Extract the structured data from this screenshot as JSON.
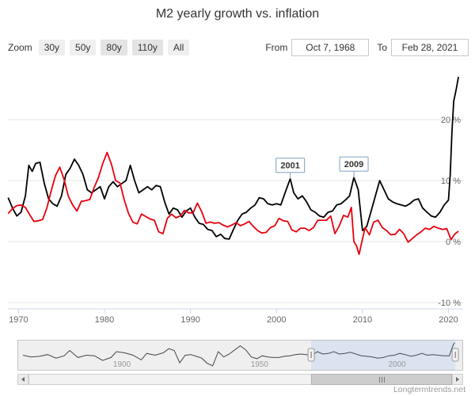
{
  "title": "M2 yearly growth vs. inflation",
  "watermark": "Longtermtrends.net",
  "controls": {
    "zoom_label": "Zoom",
    "zoom_buttons": [
      {
        "label": "30y"
      },
      {
        "label": "50y"
      },
      {
        "label": "80y"
      },
      {
        "label": "110y"
      },
      {
        "label": "All"
      }
    ],
    "from_label": "From",
    "from_value": "Oct 7, 1968",
    "to_label": "To",
    "to_value": "Feb 28, 2021"
  },
  "chart_data": {
    "type": "line",
    "title": "M2 yearly growth vs. inflation",
    "legend": "off",
    "grid": "horizontal",
    "flag_color": "#7f9fc0",
    "x_axis": {
      "range": [
        1968.77,
        2021.7
      ],
      "ticks": [
        1970,
        1980,
        1990,
        2000,
        2010,
        2020
      ]
    },
    "y_axis": {
      "side": "right",
      "range": [
        -11,
        27.5
      ],
      "ticks": [
        {
          "value": 20,
          "label": "20 %"
        },
        {
          "value": 10,
          "label": "10 %"
        },
        {
          "value": 0,
          "label": "0 %"
        },
        {
          "value": -10,
          "label": "-10 %"
        }
      ]
    },
    "flags": [
      {
        "label": "2001",
        "x": 2001.6,
        "y": 10.3
      },
      {
        "label": "2009",
        "x": 2009.0,
        "y": 10.5
      }
    ],
    "series": [
      {
        "name": "M2 yearly growth",
        "color": "#000000",
        "points": [
          [
            1968.8,
            7.2
          ],
          [
            1969.3,
            5.5
          ],
          [
            1969.8,
            4.2
          ],
          [
            1970.3,
            4.8
          ],
          [
            1970.8,
            7.5
          ],
          [
            1971.2,
            12.5
          ],
          [
            1971.6,
            11.5
          ],
          [
            1972.0,
            12.8
          ],
          [
            1972.5,
            13.0
          ],
          [
            1973.0,
            9.5
          ],
          [
            1973.5,
            7.0
          ],
          [
            1974.0,
            6.2
          ],
          [
            1974.5,
            5.8
          ],
          [
            1975.0,
            7.5
          ],
          [
            1975.5,
            11.0
          ],
          [
            1976.0,
            12.0
          ],
          [
            1976.5,
            13.5
          ],
          [
            1977.0,
            12.5
          ],
          [
            1977.5,
            11.0
          ],
          [
            1978.0,
            8.5
          ],
          [
            1978.5,
            8.0
          ],
          [
            1979.0,
            8.5
          ],
          [
            1979.5,
            9.0
          ],
          [
            1980.0,
            7.0
          ],
          [
            1980.5,
            9.0
          ],
          [
            1981.0,
            9.8
          ],
          [
            1981.5,
            9.0
          ],
          [
            1982.0,
            9.5
          ],
          [
            1982.5,
            10.0
          ],
          [
            1983.0,
            12.5
          ],
          [
            1983.5,
            10.0
          ],
          [
            1984.0,
            8.0
          ],
          [
            1984.5,
            8.5
          ],
          [
            1985.0,
            9.0
          ],
          [
            1985.5,
            8.5
          ],
          [
            1986.0,
            9.2
          ],
          [
            1986.5,
            9.0
          ],
          [
            1987.0,
            6.5
          ],
          [
            1987.5,
            4.5
          ],
          [
            1988.0,
            5.5
          ],
          [
            1988.5,
            5.2
          ],
          [
            1989.0,
            4.0
          ],
          [
            1989.5,
            5.0
          ],
          [
            1990.0,
            5.5
          ],
          [
            1990.5,
            4.0
          ],
          [
            1991.0,
            3.0
          ],
          [
            1991.5,
            2.8
          ],
          [
            1992.0,
            2.0
          ],
          [
            1992.5,
            1.8
          ],
          [
            1993.0,
            0.8
          ],
          [
            1993.5,
            1.2
          ],
          [
            1994.0,
            0.5
          ],
          [
            1994.5,
            0.4
          ],
          [
            1995.0,
            2.0
          ],
          [
            1995.5,
            3.5
          ],
          [
            1996.0,
            4.5
          ],
          [
            1996.5,
            4.8
          ],
          [
            1997.0,
            5.5
          ],
          [
            1997.5,
            6.0
          ],
          [
            1998.0,
            7.2
          ],
          [
            1998.5,
            7.0
          ],
          [
            1999.0,
            6.2
          ],
          [
            1999.5,
            6.0
          ],
          [
            2000.0,
            6.2
          ],
          [
            2000.5,
            6.0
          ],
          [
            2001.0,
            8.0
          ],
          [
            2001.6,
            10.3
          ],
          [
            2002.0,
            8.0
          ],
          [
            2002.5,
            7.0
          ],
          [
            2003.0,
            7.5
          ],
          [
            2003.5,
            6.5
          ],
          [
            2004.0,
            5.2
          ],
          [
            2004.5,
            4.8
          ],
          [
            2005.0,
            4.2
          ],
          [
            2005.5,
            4.0
          ],
          [
            2006.0,
            4.8
          ],
          [
            2006.5,
            5.0
          ],
          [
            2007.0,
            6.0
          ],
          [
            2007.5,
            6.2
          ],
          [
            2008.0,
            6.8
          ],
          [
            2008.5,
            7.5
          ],
          [
            2009.0,
            10.5
          ],
          [
            2009.5,
            8.5
          ],
          [
            2010.0,
            1.8
          ],
          [
            2010.5,
            2.5
          ],
          [
            2011.0,
            5.0
          ],
          [
            2011.5,
            7.5
          ],
          [
            2012.0,
            10.0
          ],
          [
            2012.5,
            8.5
          ],
          [
            2013.0,
            7.0
          ],
          [
            2013.5,
            6.5
          ],
          [
            2014.0,
            6.2
          ],
          [
            2014.5,
            6.0
          ],
          [
            2015.0,
            5.8
          ],
          [
            2015.5,
            6.2
          ],
          [
            2016.0,
            6.8
          ],
          [
            2016.5,
            7.0
          ],
          [
            2017.0,
            5.5
          ],
          [
            2017.5,
            4.8
          ],
          [
            2018.0,
            4.2
          ],
          [
            2018.5,
            4.0
          ],
          [
            2019.0,
            4.8
          ],
          [
            2019.5,
            6.0
          ],
          [
            2020.0,
            6.8
          ],
          [
            2020.2,
            11.0
          ],
          [
            2020.4,
            18.0
          ],
          [
            2020.6,
            23.0
          ],
          [
            2020.9,
            25.0
          ],
          [
            2021.16,
            27.0
          ]
        ]
      },
      {
        "name": "Inflation",
        "color": "#e8000d",
        "points": [
          [
            1968.8,
            4.6
          ],
          [
            1969.3,
            5.4
          ],
          [
            1969.8,
            5.9
          ],
          [
            1970.3,
            6.0
          ],
          [
            1970.8,
            5.6
          ],
          [
            1971.3,
            4.4
          ],
          [
            1971.8,
            3.3
          ],
          [
            1972.3,
            3.4
          ],
          [
            1972.8,
            3.6
          ],
          [
            1973.3,
            5.5
          ],
          [
            1973.8,
            8.3
          ],
          [
            1974.3,
            10.8
          ],
          [
            1974.8,
            12.2
          ],
          [
            1975.3,
            10.2
          ],
          [
            1975.8,
            7.4
          ],
          [
            1976.3,
            6.0
          ],
          [
            1976.8,
            5.0
          ],
          [
            1977.3,
            6.6
          ],
          [
            1977.8,
            6.7
          ],
          [
            1978.3,
            6.9
          ],
          [
            1978.8,
            8.9
          ],
          [
            1979.3,
            10.5
          ],
          [
            1979.8,
            12.8
          ],
          [
            1980.3,
            14.6
          ],
          [
            1980.8,
            12.7
          ],
          [
            1981.3,
            10.0
          ],
          [
            1981.8,
            9.6
          ],
          [
            1982.3,
            6.8
          ],
          [
            1982.8,
            4.6
          ],
          [
            1983.3,
            3.2
          ],
          [
            1983.8,
            2.9
          ],
          [
            1984.3,
            4.5
          ],
          [
            1984.8,
            4.1
          ],
          [
            1985.3,
            3.7
          ],
          [
            1985.8,
            3.5
          ],
          [
            1986.3,
            1.6
          ],
          [
            1986.8,
            1.3
          ],
          [
            1987.3,
            3.8
          ],
          [
            1987.8,
            4.5
          ],
          [
            1988.3,
            3.9
          ],
          [
            1988.8,
            4.2
          ],
          [
            1989.3,
            5.1
          ],
          [
            1989.8,
            4.7
          ],
          [
            1990.3,
            4.7
          ],
          [
            1990.8,
            6.3
          ],
          [
            1991.3,
            4.9
          ],
          [
            1991.8,
            3.0
          ],
          [
            1992.3,
            3.2
          ],
          [
            1992.8,
            3.0
          ],
          [
            1993.3,
            3.1
          ],
          [
            1993.8,
            2.7
          ],
          [
            1994.3,
            2.4
          ],
          [
            1994.8,
            2.7
          ],
          [
            1995.3,
            3.1
          ],
          [
            1995.8,
            2.6
          ],
          [
            1996.3,
            2.9
          ],
          [
            1996.8,
            3.3
          ],
          [
            1997.3,
            2.5
          ],
          [
            1997.8,
            1.8
          ],
          [
            1998.3,
            1.4
          ],
          [
            1998.8,
            1.5
          ],
          [
            1999.3,
            2.3
          ],
          [
            1999.8,
            2.6
          ],
          [
            2000.3,
            3.8
          ],
          [
            2000.8,
            3.4
          ],
          [
            2001.3,
            3.3
          ],
          [
            2001.8,
            1.9
          ],
          [
            2002.3,
            1.6
          ],
          [
            2002.8,
            2.2
          ],
          [
            2003.3,
            2.2
          ],
          [
            2003.8,
            1.8
          ],
          [
            2004.3,
            2.3
          ],
          [
            2004.8,
            3.5
          ],
          [
            2005.3,
            3.5
          ],
          [
            2005.8,
            3.5
          ],
          [
            2006.3,
            4.2
          ],
          [
            2006.8,
            1.3
          ],
          [
            2007.3,
            2.6
          ],
          [
            2007.8,
            4.3
          ],
          [
            2008.3,
            4.0
          ],
          [
            2008.7,
            5.6
          ],
          [
            2009.0,
            0.0
          ],
          [
            2009.3,
            -0.7
          ],
          [
            2009.6,
            -2.1
          ],
          [
            2009.9,
            -0.2
          ],
          [
            2010.3,
            2.3
          ],
          [
            2010.8,
            1.1
          ],
          [
            2011.3,
            3.2
          ],
          [
            2011.8,
            3.5
          ],
          [
            2012.3,
            2.3
          ],
          [
            2012.8,
            1.8
          ],
          [
            2013.3,
            1.1
          ],
          [
            2013.8,
            1.2
          ],
          [
            2014.3,
            2.0
          ],
          [
            2014.8,
            1.3
          ],
          [
            2015.3,
            -0.1
          ],
          [
            2015.8,
            0.5
          ],
          [
            2016.3,
            1.1
          ],
          [
            2016.8,
            1.6
          ],
          [
            2017.3,
            2.2
          ],
          [
            2017.8,
            2.0
          ],
          [
            2018.3,
            2.5
          ],
          [
            2018.8,
            2.2
          ],
          [
            2019.3,
            2.0
          ],
          [
            2019.8,
            2.1
          ],
          [
            2020.3,
            0.3
          ],
          [
            2020.7,
            1.2
          ],
          [
            2021.16,
            1.7
          ]
        ]
      }
    ],
    "navigator": {
      "range": [
        1862,
        2024
      ],
      "selected": [
        1968.77,
        2021.16
      ],
      "ticks": [
        1900,
        1950,
        2000
      ],
      "series": [
        [
          1864,
          6
        ],
        [
          1867,
          3
        ],
        [
          1870,
          4
        ],
        [
          1873,
          7
        ],
        [
          1876,
          1
        ],
        [
          1879,
          5
        ],
        [
          1881,
          14
        ],
        [
          1884,
          2
        ],
        [
          1887,
          6
        ],
        [
          1890,
          5
        ],
        [
          1893,
          -3
        ],
        [
          1896,
          2
        ],
        [
          1898,
          12
        ],
        [
          1901,
          10
        ],
        [
          1904,
          6
        ],
        [
          1907,
          -2
        ],
        [
          1909,
          9
        ],
        [
          1912,
          6
        ],
        [
          1915,
          10
        ],
        [
          1917,
          17
        ],
        [
          1919,
          14
        ],
        [
          1921,
          -7
        ],
        [
          1923,
          6
        ],
        [
          1925,
          7
        ],
        [
          1927,
          4
        ],
        [
          1929,
          1
        ],
        [
          1931,
          -8
        ],
        [
          1933,
          -12
        ],
        [
          1935,
          12
        ],
        [
          1937,
          3
        ],
        [
          1939,
          8
        ],
        [
          1941,
          15
        ],
        [
          1943,
          22
        ],
        [
          1945,
          15
        ],
        [
          1947,
          3
        ],
        [
          1949,
          0
        ],
        [
          1951,
          5
        ],
        [
          1953,
          3
        ],
        [
          1955,
          2
        ],
        [
          1957,
          2
        ],
        [
          1959,
          4
        ],
        [
          1961,
          5
        ],
        [
          1963,
          7
        ],
        [
          1965,
          8
        ],
        [
          1967,
          7
        ],
        [
          1969,
          5
        ],
        [
          1971,
          12
        ],
        [
          1973,
          8
        ],
        [
          1975,
          9
        ],
        [
          1977,
          12
        ],
        [
          1979,
          8
        ],
        [
          1981,
          9
        ],
        [
          1983,
          11
        ],
        [
          1985,
          8
        ],
        [
          1987,
          5
        ],
        [
          1989,
          4
        ],
        [
          1991,
          3
        ],
        [
          1993,
          1
        ],
        [
          1995,
          2
        ],
        [
          1997,
          5
        ],
        [
          1999,
          6
        ],
        [
          2001,
          9
        ],
        [
          2003,
          7
        ],
        [
          2005,
          4
        ],
        [
          2007,
          6
        ],
        [
          2009,
          9
        ],
        [
          2011,
          6
        ],
        [
          2013,
          7
        ],
        [
          2015,
          6
        ],
        [
          2017,
          5
        ],
        [
          2019,
          5
        ],
        [
          2020.5,
          25
        ],
        [
          2021,
          27
        ]
      ]
    }
  }
}
